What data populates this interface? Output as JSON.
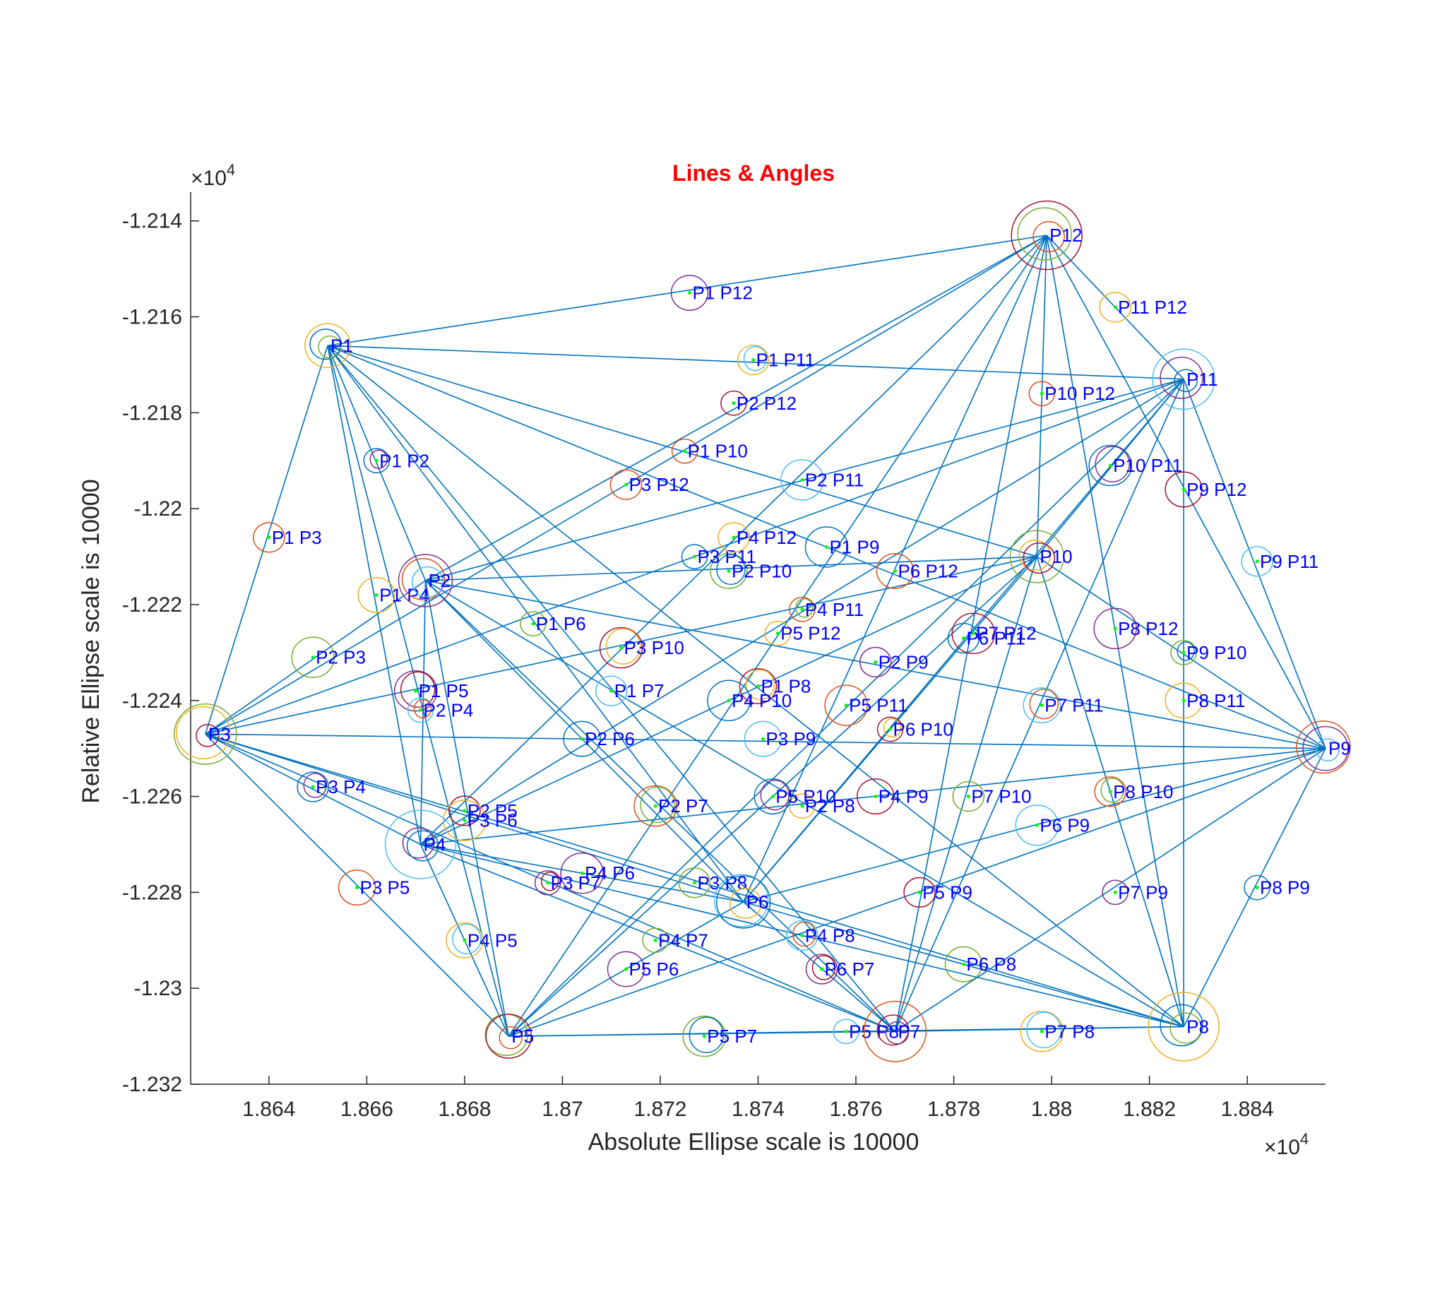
{
  "chart_data": {
    "type": "scatter",
    "title": "Lines & Angles",
    "xlabel": "Absolute Ellipse scale is 10000",
    "ylabel": "Relative Ellipse scale is 10000",
    "x_multiplier": "×10",
    "x_multiplier_exp": "4",
    "y_multiplier": "×10",
    "y_multiplier_exp": "4",
    "xlim": [
      1.8624,
      1.8856
    ],
    "ylim": [
      -1.232,
      -1.2134
    ],
    "xticks": [
      1.864,
      1.866,
      1.868,
      1.87,
      1.872,
      1.874,
      1.876,
      1.878,
      1.88,
      1.882,
      1.884
    ],
    "xtick_labels": [
      "1.864",
      "1.866",
      "1.868",
      "1.87",
      "1.872",
      "1.874",
      "1.876",
      "1.878",
      "1.88",
      "1.882",
      "1.884"
    ],
    "yticks": [
      -1.214,
      -1.216,
      -1.218,
      -1.22,
      -1.222,
      -1.224,
      -1.226,
      -1.228,
      -1.23,
      -1.232
    ],
    "ytick_labels": [
      "-1.214",
      "-1.216",
      "-1.218",
      "-1.22",
      "-1.222",
      "-1.224",
      "-1.226",
      "-1.228",
      "-1.23",
      "-1.232"
    ],
    "line_color": "#0072bd",
    "label_color": "#0000ff",
    "midpoint_color": "#00ff00",
    "ellipse_colors": [
      "#0072bd",
      "#d95319",
      "#edb120",
      "#7e2f8e",
      "#77ac30",
      "#4dbeee",
      "#a2142f"
    ],
    "points": [
      {
        "name": "P1",
        "x": 1.8652,
        "y": -1.2166
      },
      {
        "name": "P2",
        "x": 1.8672,
        "y": -1.2215
      },
      {
        "name": "P3",
        "x": 1.8627,
        "y": -1.2247
      },
      {
        "name": "P4",
        "x": 1.8671,
        "y": -1.227
      },
      {
        "name": "P5",
        "x": 1.8689,
        "y": -1.231
      },
      {
        "name": "P6",
        "x": 1.8737,
        "y": -1.2282
      },
      {
        "name": "P7",
        "x": 1.8768,
        "y": -1.2309
      },
      {
        "name": "P8",
        "x": 1.8827,
        "y": -1.2308
      },
      {
        "name": "P9",
        "x": 1.8856,
        "y": -1.225
      },
      {
        "name": "P10",
        "x": 1.8797,
        "y": -1.221
      },
      {
        "name": "P11",
        "x": 1.8827,
        "y": -1.2173
      },
      {
        "name": "P12",
        "x": 1.8799,
        "y": -1.2143
      }
    ],
    "segment_labels": [
      {
        "text": "P1 P2",
        "x": 1.8662,
        "y": -1.219
      },
      {
        "text": "P1 P3",
        "x": 1.864,
        "y": -1.2206
      },
      {
        "text": "P1 P4",
        "x": 1.8662,
        "y": -1.2218
      },
      {
        "text": "P1 P5",
        "x": 1.867,
        "y": -1.2238
      },
      {
        "text": "P1 P6",
        "x": 1.8694,
        "y": -1.2224
      },
      {
        "text": "P1 P7",
        "x": 1.871,
        "y": -1.2238
      },
      {
        "text": "P1 P8",
        "x": 1.874,
        "y": -1.2237
      },
      {
        "text": "P1 P9",
        "x": 1.8754,
        "y": -1.2208
      },
      {
        "text": "P1 P10",
        "x": 1.8725,
        "y": -1.2188
      },
      {
        "text": "P1 P11",
        "x": 1.8739,
        "y": -1.2169
      },
      {
        "text": "P1 P12",
        "x": 1.8726,
        "y": -1.2155
      },
      {
        "text": "P2 P3",
        "x": 1.8649,
        "y": -1.2231
      },
      {
        "text": "P2 P4",
        "x": 1.8671,
        "y": -1.2242
      },
      {
        "text": "P2 P5",
        "x": 1.868,
        "y": -1.2263
      },
      {
        "text": "P2 P6",
        "x": 1.8704,
        "y": -1.2248
      },
      {
        "text": "P2 P7",
        "x": 1.8719,
        "y": -1.2262
      },
      {
        "text": "P2 P8",
        "x": 1.8749,
        "y": -1.2262
      },
      {
        "text": "P2 P9",
        "x": 1.8764,
        "y": -1.2232
      },
      {
        "text": "P2 P10",
        "x": 1.8734,
        "y": -1.2213
      },
      {
        "text": "P2 P11",
        "x": 1.8749,
        "y": -1.2194
      },
      {
        "text": "P2 P12",
        "x": 1.8735,
        "y": -1.2178
      },
      {
        "text": "P3 P4",
        "x": 1.8649,
        "y": -1.2258
      },
      {
        "text": "P3 P5",
        "x": 1.8658,
        "y": -1.2279
      },
      {
        "text": "P3 P6",
        "x": 1.868,
        "y": -1.2265
      },
      {
        "text": "P3 P7",
        "x": 1.8697,
        "y": -1.2278
      },
      {
        "text": "P3 P8",
        "x": 1.8727,
        "y": -1.2278
      },
      {
        "text": "P3 P9",
        "x": 1.8741,
        "y": -1.2248
      },
      {
        "text": "P3 P10",
        "x": 1.8712,
        "y": -1.2229
      },
      {
        "text": "P3 P11",
        "x": 1.8727,
        "y": -1.221
      },
      {
        "text": "P3 P12",
        "x": 1.8713,
        "y": -1.2195
      },
      {
        "text": "P4 P5",
        "x": 1.868,
        "y": -1.229
      },
      {
        "text": "P4 P6",
        "x": 1.8704,
        "y": -1.2276
      },
      {
        "text": "P4 P7",
        "x": 1.8719,
        "y": -1.229
      },
      {
        "text": "P4 P8",
        "x": 1.8749,
        "y": -1.2289
      },
      {
        "text": "P4 P9",
        "x": 1.8764,
        "y": -1.226
      },
      {
        "text": "P4 P10",
        "x": 1.8734,
        "y": -1.224
      },
      {
        "text": "P4 P11",
        "x": 1.8749,
        "y": -1.2221
      },
      {
        "text": "P4 P12",
        "x": 1.8735,
        "y": -1.2206
      },
      {
        "text": "P5 P6",
        "x": 1.8713,
        "y": -1.2296
      },
      {
        "text": "P5 P7",
        "x": 1.8729,
        "y": -1.231
      },
      {
        "text": "P5 P8",
        "x": 1.8758,
        "y": -1.2309
      },
      {
        "text": "P5 P9",
        "x": 1.8773,
        "y": -1.228
      },
      {
        "text": "P5 P10",
        "x": 1.8743,
        "y": -1.226
      },
      {
        "text": "P5 P11",
        "x": 1.8758,
        "y": -1.2241
      },
      {
        "text": "P5 P12",
        "x": 1.8744,
        "y": -1.2226
      },
      {
        "text": "P6 P7",
        "x": 1.8753,
        "y": -1.2296
      },
      {
        "text": "P6 P8",
        "x": 1.8782,
        "y": -1.2295
      },
      {
        "text": "P6 P9",
        "x": 1.8797,
        "y": -1.2266
      },
      {
        "text": "P6 P10",
        "x": 1.8767,
        "y": -1.2246
      },
      {
        "text": "P6 P11",
        "x": 1.8782,
        "y": -1.2227
      },
      {
        "text": "P6 P12",
        "x": 1.8768,
        "y": -1.2213
      },
      {
        "text": "P7 P8",
        "x": 1.8798,
        "y": -1.2309
      },
      {
        "text": "P7 P9",
        "x": 1.8813,
        "y": -1.228
      },
      {
        "text": "P7 P10",
        "x": 1.8783,
        "y": -1.226
      },
      {
        "text": "P7 P11",
        "x": 1.8798,
        "y": -1.2241
      },
      {
        "text": "P7 P12",
        "x": 1.8784,
        "y": -1.2226
      },
      {
        "text": "P8 P9",
        "x": 1.8842,
        "y": -1.2279
      },
      {
        "text": "P8 P10",
        "x": 1.8812,
        "y": -1.2259
      },
      {
        "text": "P8 P11",
        "x": 1.8827,
        "y": -1.224
      },
      {
        "text": "P8 P12",
        "x": 1.8813,
        "y": -1.2225
      },
      {
        "text": "P9 P10",
        "x": 1.8827,
        "y": -1.223
      },
      {
        "text": "P9 P11",
        "x": 1.8842,
        "y": -1.2211
      },
      {
        "text": "P9 P12",
        "x": 1.8827,
        "y": -1.2196
      },
      {
        "text": "P10 P11",
        "x": 1.8812,
        "y": -1.2191
      },
      {
        "text": "P10 P12",
        "x": 1.8798,
        "y": -1.2176
      },
      {
        "text": "P11 P12",
        "x": 1.8813,
        "y": -1.2158
      }
    ]
  }
}
